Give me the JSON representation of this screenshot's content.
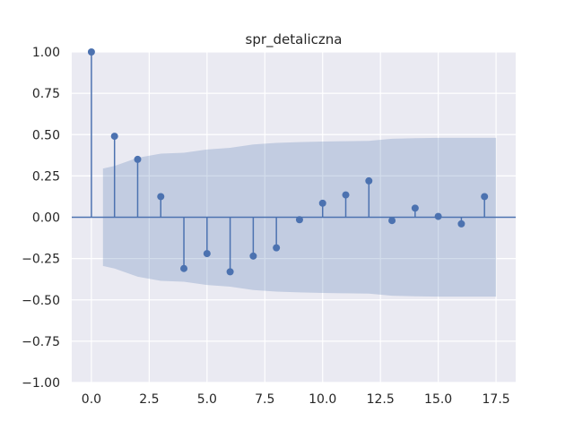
{
  "chart_data": {
    "type": "stem",
    "title": "spr_detaliczna",
    "xlabel": "",
    "ylabel": "",
    "xlim": [
      -0.85,
      18.35
    ],
    "ylim": [
      -1.0,
      1.0
    ],
    "xticks": [
      0.0,
      2.5,
      5.0,
      7.5,
      10.0,
      12.5,
      15.0,
      17.5
    ],
    "xtick_labels": [
      "0.0",
      "2.5",
      "5.0",
      "7.5",
      "10.0",
      "12.5",
      "15.0",
      "17.5"
    ],
    "yticks": [
      1.0,
      0.75,
      0.5,
      0.25,
      0.0,
      -0.25,
      -0.5,
      -0.75,
      -1.0
    ],
    "ytick_labels": [
      "1.00",
      "0.75",
      "0.50",
      "0.25",
      "0.00",
      "−0.25",
      "−0.50",
      "−0.75",
      "−1.00"
    ],
    "grid": true,
    "lags": [
      0,
      1,
      2,
      3,
      4,
      5,
      6,
      7,
      8,
      9,
      10,
      11,
      12,
      13,
      14,
      15,
      16,
      17
    ],
    "values": [
      1.0,
      0.49,
      0.35,
      0.125,
      -0.31,
      -0.22,
      -0.33,
      -0.235,
      -0.185,
      -0.015,
      0.085,
      0.135,
      0.22,
      -0.02,
      0.055,
      0.005,
      -0.04,
      0.125
    ],
    "confidence_band": {
      "x": [
        0.5,
        1,
        2,
        3,
        4,
        5,
        6,
        7,
        8,
        9,
        10,
        11,
        12,
        13,
        14,
        15,
        16,
        17,
        17.5
      ],
      "upper": [
        0.295,
        0.31,
        0.36,
        0.385,
        0.39,
        0.41,
        0.42,
        0.44,
        0.45,
        0.455,
        0.458,
        0.46,
        0.462,
        0.475,
        0.478,
        0.48,
        0.48,
        0.48,
        0.48
      ],
      "lower": [
        -0.295,
        -0.31,
        -0.36,
        -0.385,
        -0.39,
        -0.41,
        -0.42,
        -0.44,
        -0.45,
        -0.455,
        -0.458,
        -0.46,
        -0.462,
        -0.475,
        -0.478,
        -0.48,
        -0.48,
        -0.48,
        -0.48
      ]
    },
    "colors": {
      "stem": "#4c72b0",
      "band": "#4c72b0",
      "background": "#eaeaf2",
      "grid": "#ffffff"
    }
  }
}
